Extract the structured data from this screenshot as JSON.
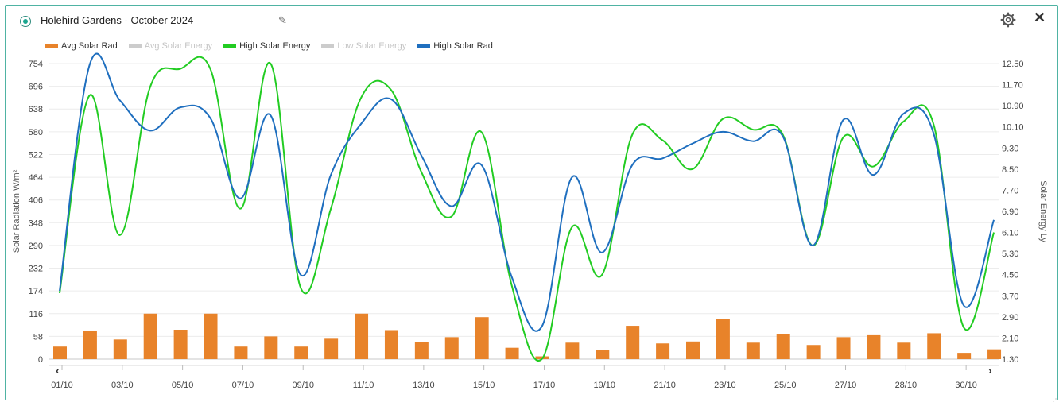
{
  "header": {
    "title": "Holehird Gardens - October 2024",
    "edit_icon": "pencil-icon",
    "settings_icon": "gear-icon",
    "close_icon": "close-icon",
    "close_glyph": "✕"
  },
  "legend": [
    {
      "label": "Avg Solar Rad",
      "color": "#e8832a",
      "visible": true,
      "kind": "bar"
    },
    {
      "label": "Avg Solar Energy",
      "color": "#cccccc",
      "visible": false,
      "kind": "line"
    },
    {
      "label": "High Solar Energy",
      "color": "#22cc22",
      "visible": true,
      "kind": "line"
    },
    {
      "label": "Low Solar Energy",
      "color": "#cccccc",
      "visible": false,
      "kind": "line"
    },
    {
      "label": "High Solar Rad",
      "color": "#1f6fbf",
      "visible": true,
      "kind": "line"
    }
  ],
  "nav": {
    "prev": "‹",
    "next": "›"
  },
  "chart_data": {
    "type": "bar+line",
    "ylabel_left": "Solar Radiation W/m²",
    "ylabel_right": "Solar Energy Ly",
    "yticks_left": [
      "0",
      "58",
      "116",
      "174",
      "232",
      "290",
      "348",
      "406",
      "464",
      "522",
      "580",
      "638",
      "696",
      "754"
    ],
    "yticks_right": [
      "1.30",
      "2.10",
      "2.90",
      "3.70",
      "4.50",
      "5.30",
      "6.10",
      "6.90",
      "7.70",
      "8.50",
      "9.30",
      "10.10",
      "10.90",
      "11.70",
      "12.50"
    ],
    "ylim_left": [
      0,
      754
    ],
    "ylim_right": [
      1.3,
      12.5
    ],
    "xtick_labels": [
      "01/10",
      "03/10",
      "05/10",
      "07/10",
      "09/10",
      "11/10",
      "13/10",
      "15/10",
      "17/10",
      "19/10",
      "21/10",
      "23/10",
      "25/10",
      "27/10",
      "28/10",
      "30/10"
    ],
    "grid": true,
    "series": [
      {
        "name": "Avg Solar Rad",
        "axis": "left",
        "type": "bar",
        "color": "#e8832a",
        "values": [
          32,
          73,
          50,
          116,
          75,
          116,
          32,
          58,
          32,
          52,
          116,
          74,
          44,
          56,
          107,
          29,
          7,
          42,
          24,
          85,
          40,
          45,
          103,
          42,
          63,
          36,
          56,
          61,
          42,
          66,
          16,
          25
        ]
      },
      {
        "name": "High Solar Energy",
        "axis": "right",
        "type": "line",
        "color": "#22cc22",
        "values": [
          3.8,
          11.3,
          6.0,
          11.6,
          12.3,
          12.3,
          7.0,
          12.5,
          4.0,
          7.0,
          11.2,
          11.5,
          8.4,
          6.7,
          9.9,
          4.1,
          1.3,
          6.3,
          4.5,
          9.8,
          9.6,
          8.5,
          10.4,
          10.0,
          9.8,
          5.6,
          9.7,
          8.6,
          10.3,
          10.2,
          2.5,
          6.1
        ]
      },
      {
        "name": "High Solar Rad",
        "axis": "left",
        "type": "line",
        "color": "#1f6fbf",
        "values": [
          174,
          752,
          660,
          583,
          642,
          615,
          410,
          622,
          215,
          470,
          600,
          663,
          520,
          390,
          495,
          210,
          83,
          464,
          272,
          495,
          512,
          550,
          580,
          556,
          568,
          290,
          610,
          470,
          626,
          576,
          137,
          355
        ]
      }
    ]
  }
}
